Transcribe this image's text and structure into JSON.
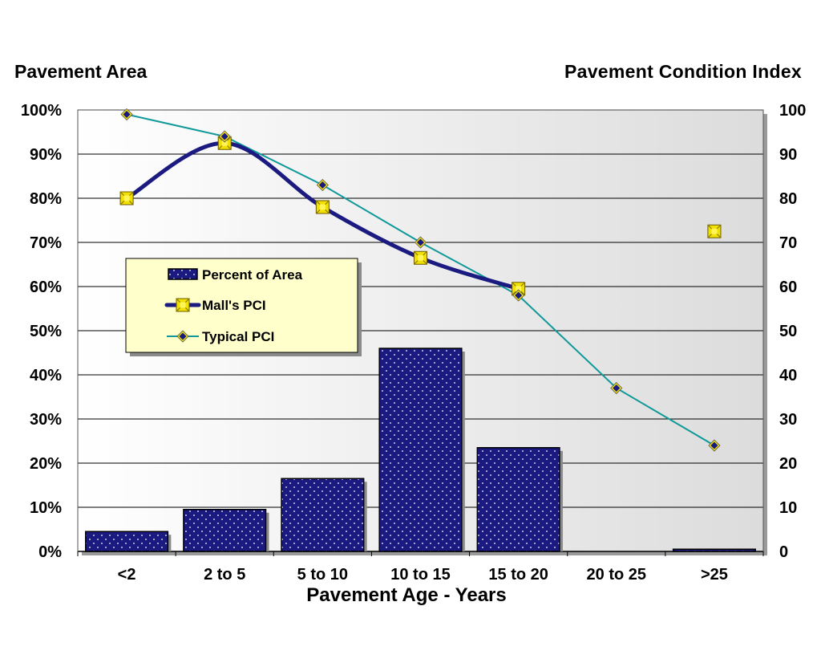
{
  "titles": {
    "left_axis_title": "Pavement Area",
    "right_axis_title": "Pavement Condition Index",
    "x_axis_title": "Pavement Age - Years"
  },
  "colors": {
    "bar_fill": "#1a1a80",
    "bar_dots": "#ffffff",
    "malls_line": "#1a1a80",
    "malls_marker": "#f2e000",
    "typical_line": "#119999",
    "typical_marker": "#1a1a80",
    "legend_bg": "#ffffcc",
    "plot_bg": "#f4f4f4",
    "grid": "#000000"
  },
  "chart_data": {
    "type": "bar",
    "categories": [
      "<2",
      "2 to 5",
      "5 to 10",
      "10 to 15",
      "15 to 20",
      "20 to 25",
      ">25"
    ],
    "y_left": {
      "min": 0,
      "max": 100,
      "step": 10,
      "unit": "%",
      "ticks": [
        "0%",
        "10%",
        "20%",
        "30%",
        "40%",
        "50%",
        "60%",
        "70%",
        "80%",
        "90%",
        "100%"
      ]
    },
    "y_right": {
      "min": 0,
      "max": 100,
      "step": 10,
      "ticks": [
        "0",
        "10",
        "20",
        "30",
        "40",
        "50",
        "60",
        "70",
        "80",
        "90",
        "100"
      ]
    },
    "grid": true,
    "legend_placement": "left-middle",
    "series": [
      {
        "name": "Percent of Area",
        "type": "bar",
        "axis": "left",
        "values": [
          4.5,
          9.5,
          16.5,
          46,
          23.5,
          0,
          0.5
        ]
      },
      {
        "name": "Mall's PCI",
        "type": "smooth-line",
        "axis": "right",
        "values": [
          80,
          92.5,
          78,
          66.5,
          59.5,
          null,
          72.5
        ]
      },
      {
        "name": "Typical PCI",
        "type": "line",
        "axis": "right",
        "values": [
          99,
          94,
          83,
          70,
          58,
          37,
          24
        ]
      }
    ]
  }
}
